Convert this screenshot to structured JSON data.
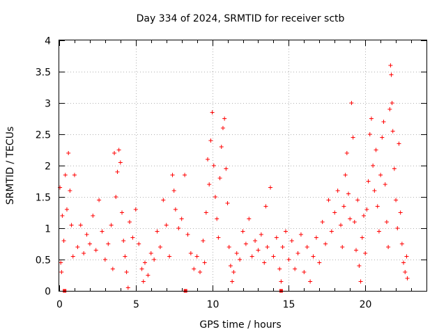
{
  "chart_data": {
    "type": "scatter",
    "title": "Day 334 of 2024, SRMTID for receiver sctb",
    "xlabel": "GPS time / hours",
    "ylabel": "SRMTID / TECUs",
    "xlim": [
      0,
      24
    ],
    "ylim": [
      0,
      4
    ],
    "x_ticks": [
      0,
      5,
      10,
      15,
      20
    ],
    "x_tick_labels": [
      "0",
      "5",
      "10",
      "15",
      "20"
    ],
    "y_ticks": [
      0,
      0.5,
      1,
      1.5,
      2,
      2.5,
      3,
      3.5,
      4
    ],
    "y_tick_labels": [
      "0",
      "0.5",
      "1",
      "1.5",
      "2",
      "2.5",
      "3",
      "3.5",
      "4"
    ],
    "grid": true,
    "series": [
      {
        "name": "SRMTID",
        "marker": "plus",
        "color": "#ff0000",
        "points": [
          [
            0.05,
            1.65
          ],
          [
            0.1,
            0.45
          ],
          [
            0.15,
            0.3
          ],
          [
            0.2,
            1.2
          ],
          [
            0.3,
            0.8
          ],
          [
            0.4,
            1.85
          ],
          [
            0.5,
            1.3
          ],
          [
            0.6,
            2.2
          ],
          [
            0.7,
            1.6
          ],
          [
            0.8,
            1.05
          ],
          [
            0.9,
            0.55
          ],
          [
            1.0,
            1.85
          ],
          [
            1.2,
            0.7
          ],
          [
            1.4,
            1.05
          ],
          [
            1.6,
            0.6
          ],
          [
            1.8,
            0.9
          ],
          [
            2.0,
            0.75
          ],
          [
            2.2,
            1.2
          ],
          [
            2.4,
            0.65
          ],
          [
            2.6,
            1.45
          ],
          [
            2.8,
            0.95
          ],
          [
            3.0,
            0.5
          ],
          [
            3.2,
            0.75
          ],
          [
            3.4,
            1.05
          ],
          [
            3.5,
            0.35
          ],
          [
            3.6,
            2.2
          ],
          [
            3.7,
            1.5
          ],
          [
            3.8,
            1.9
          ],
          [
            3.9,
            2.25
          ],
          [
            4.0,
            2.05
          ],
          [
            4.1,
            1.25
          ],
          [
            4.2,
            0.8
          ],
          [
            4.3,
            0.55
          ],
          [
            4.4,
            0.3
          ],
          [
            4.5,
            0.05
          ],
          [
            4.6,
            1.1
          ],
          [
            4.8,
            0.85
          ],
          [
            5.0,
            1.3
          ],
          [
            5.2,
            0.75
          ],
          [
            5.4,
            0.35
          ],
          [
            5.5,
            0.15
          ],
          [
            5.6,
            0.45
          ],
          [
            5.8,
            0.25
          ],
          [
            6.0,
            0.6
          ],
          [
            6.2,
            0.5
          ],
          [
            6.4,
            0.95
          ],
          [
            6.6,
            0.7
          ],
          [
            6.8,
            1.45
          ],
          [
            7.0,
            1.05
          ],
          [
            7.2,
            0.55
          ],
          [
            7.4,
            1.85
          ],
          [
            7.5,
            1.6
          ],
          [
            7.6,
            1.3
          ],
          [
            7.8,
            1.0
          ],
          [
            8.0,
            1.15
          ],
          [
            8.2,
            1.85
          ],
          [
            8.4,
            0.9
          ],
          [
            8.6,
            0.6
          ],
          [
            8.8,
            0.35
          ],
          [
            9.0,
            0.55
          ],
          [
            9.2,
            0.3
          ],
          [
            9.4,
            0.8
          ],
          [
            9.5,
            0.45
          ],
          [
            9.6,
            1.25
          ],
          [
            9.7,
            2.1
          ],
          [
            9.8,
            1.7
          ],
          [
            9.9,
            2.4
          ],
          [
            10.0,
            2.85
          ],
          [
            10.1,
            2.0
          ],
          [
            10.2,
            1.5
          ],
          [
            10.3,
            1.15
          ],
          [
            10.4,
            0.85
          ],
          [
            10.5,
            1.8
          ],
          [
            10.6,
            2.3
          ],
          [
            10.7,
            2.6
          ],
          [
            10.8,
            2.75
          ],
          [
            10.9,
            1.95
          ],
          [
            11.0,
            1.4
          ],
          [
            11.1,
            0.7
          ],
          [
            11.2,
            0.4
          ],
          [
            11.3,
            0.15
          ],
          [
            11.4,
            0.3
          ],
          [
            11.6,
            0.6
          ],
          [
            11.8,
            0.5
          ],
          [
            12.0,
            0.95
          ],
          [
            12.2,
            0.75
          ],
          [
            12.4,
            1.15
          ],
          [
            12.6,
            0.55
          ],
          [
            12.8,
            0.8
          ],
          [
            13.0,
            0.65
          ],
          [
            13.2,
            0.9
          ],
          [
            13.4,
            0.45
          ],
          [
            13.5,
            1.35
          ],
          [
            13.6,
            0.7
          ],
          [
            13.8,
            1.65
          ],
          [
            14.0,
            0.55
          ],
          [
            14.2,
            0.85
          ],
          [
            14.4,
            0.35
          ],
          [
            14.5,
            0.15
          ],
          [
            14.6,
            0.7
          ],
          [
            14.8,
            0.95
          ],
          [
            15.0,
            0.5
          ],
          [
            15.2,
            0.8
          ],
          [
            15.4,
            0.35
          ],
          [
            15.6,
            0.6
          ],
          [
            15.8,
            0.9
          ],
          [
            16.0,
            0.3
          ],
          [
            16.2,
            0.7
          ],
          [
            16.4,
            0.15
          ],
          [
            16.6,
            0.55
          ],
          [
            16.8,
            0.85
          ],
          [
            17.0,
            0.45
          ],
          [
            17.2,
            1.1
          ],
          [
            17.4,
            0.75
          ],
          [
            17.6,
            1.45
          ],
          [
            17.8,
            0.95
          ],
          [
            18.0,
            1.25
          ],
          [
            18.2,
            1.6
          ],
          [
            18.4,
            1.05
          ],
          [
            18.5,
            0.7
          ],
          [
            18.6,
            1.35
          ],
          [
            18.7,
            1.85
          ],
          [
            18.8,
            2.2
          ],
          [
            18.9,
            1.55
          ],
          [
            19.0,
            1.15
          ],
          [
            19.1,
            3.0
          ],
          [
            19.2,
            2.45
          ],
          [
            19.3,
            1.1
          ],
          [
            19.4,
            0.65
          ],
          [
            19.5,
            1.45
          ],
          [
            19.6,
            0.4
          ],
          [
            19.7,
            0.15
          ],
          [
            19.8,
            0.85
          ],
          [
            19.9,
            1.2
          ],
          [
            20.0,
            0.6
          ],
          [
            20.1,
            1.3
          ],
          [
            20.2,
            1.75
          ],
          [
            20.3,
            2.5
          ],
          [
            20.4,
            2.75
          ],
          [
            20.5,
            2.0
          ],
          [
            20.6,
            1.6
          ],
          [
            20.7,
            2.25
          ],
          [
            20.8,
            1.35
          ],
          [
            20.9,
            0.95
          ],
          [
            21.0,
            1.85
          ],
          [
            21.1,
            2.45
          ],
          [
            21.2,
            2.7
          ],
          [
            21.3,
            1.7
          ],
          [
            21.4,
            1.1
          ],
          [
            21.5,
            0.7
          ],
          [
            21.6,
            2.9
          ],
          [
            21.65,
            3.6
          ],
          [
            21.7,
            3.45
          ],
          [
            21.75,
            3.0
          ],
          [
            21.8,
            2.55
          ],
          [
            21.9,
            1.95
          ],
          [
            22.0,
            1.45
          ],
          [
            22.1,
            1.0
          ],
          [
            22.2,
            2.35
          ],
          [
            22.3,
            1.25
          ],
          [
            22.4,
            0.75
          ],
          [
            22.5,
            0.45
          ],
          [
            22.6,
            0.3
          ],
          [
            22.7,
            0.55
          ],
          [
            22.75,
            0.2
          ]
        ]
      }
    ],
    "baseline_markers_x": [
      0.35,
      8.25,
      14.5
    ]
  }
}
